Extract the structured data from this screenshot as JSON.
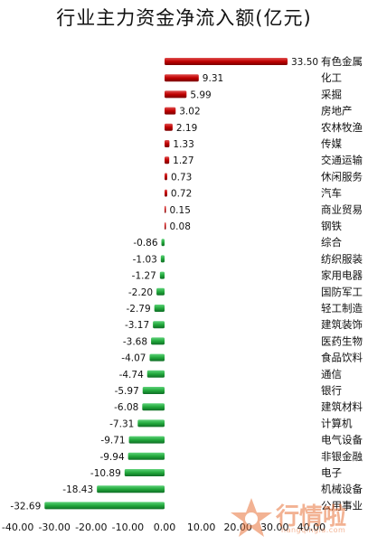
{
  "watermark": {
    "brand": "行情啦",
    "url": "hangqingla.com"
  },
  "chart_data": {
    "type": "bar",
    "orientation": "horizontal",
    "title": "行业主力资金净流入额(亿元)",
    "xlim": [
      -40,
      40
    ],
    "xticks": [
      "-40.00",
      "-30.00",
      "-20.00",
      "-10.00",
      "0.00",
      "10.00",
      "20.00",
      "30.00",
      "40.00"
    ],
    "xtick_values": [
      -40,
      -30,
      -20,
      -10,
      0,
      10,
      20,
      30,
      40
    ],
    "positive_color": "#c00000",
    "negative_color": "#22a83c",
    "categories": [
      "有色金属",
      "化工",
      "采掘",
      "房地产",
      "农林牧渔",
      "传媒",
      "交通运输",
      "休闲服务",
      "汽车",
      "商业贸易",
      "钢铁",
      "综合",
      "纺织服装",
      "家用电器",
      "国防军工",
      "轻工制造",
      "建筑装饰",
      "医药生物",
      "食品饮料",
      "通信",
      "银行",
      "建筑材料",
      "计算机",
      "电气设备",
      "非银金融",
      "电子",
      "机械设备",
      "公用事业"
    ],
    "values": [
      33.5,
      9.31,
      5.99,
      3.02,
      2.19,
      1.33,
      1.27,
      0.73,
      0.72,
      0.15,
      0.08,
      -0.86,
      -1.03,
      -1.27,
      -2.2,
      -2.79,
      -3.17,
      -3.68,
      -4.07,
      -4.74,
      -5.97,
      -6.08,
      -7.31,
      -9.71,
      -9.94,
      -10.89,
      -18.43,
      -32.69
    ],
    "value_labels": [
      "33.50",
      "9.31",
      "5.99",
      "3.02",
      "2.19",
      "1.33",
      "1.27",
      "0.73",
      "0.72",
      "0.15",
      "0.08",
      "-0.86",
      "-1.03",
      "-1.27",
      "-2.20",
      "-2.79",
      "-3.17",
      "-3.68",
      "-4.07",
      "-4.74",
      "-5.97",
      "-6.08",
      "-7.31",
      "-9.71",
      "-9.94",
      "-10.89",
      "-18.43",
      "-32.69"
    ],
    "grid": false,
    "legend": "none"
  }
}
